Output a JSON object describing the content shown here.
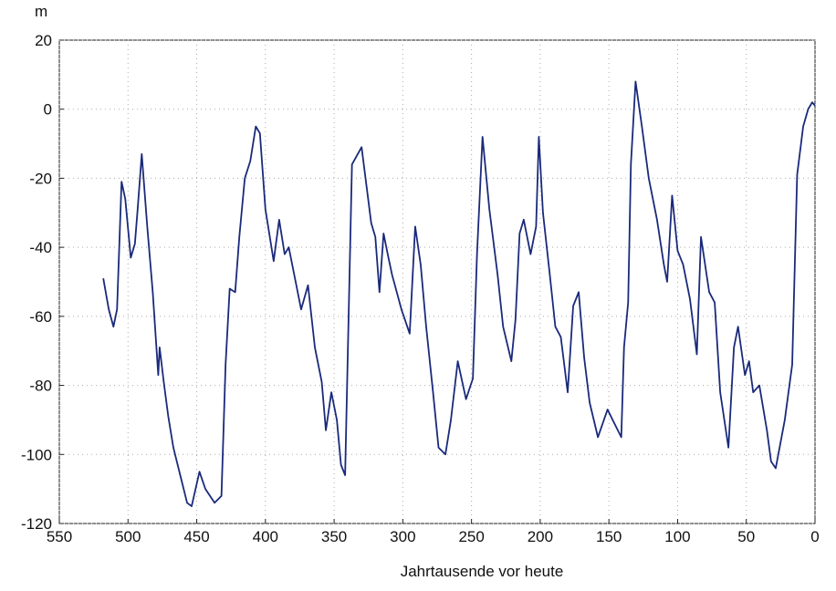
{
  "chart_data": {
    "type": "line",
    "y_unit": "m",
    "x_label": "Jahrtausende vor heute",
    "x": [
      518,
      514,
      510.6,
      508,
      504.7,
      502,
      498,
      495,
      493,
      490,
      486,
      482,
      478,
      477,
      474,
      470.7,
      467,
      462,
      457,
      453.7,
      448,
      443.7,
      437,
      432,
      429,
      426,
      422,
      419,
      415,
      411,
      407,
      404,
      400,
      394,
      390,
      386,
      383,
      378,
      374,
      369,
      364,
      359,
      356,
      352,
      348,
      345,
      342,
      337,
      330,
      323,
      320,
      317,
      314,
      311,
      307.8,
      301,
      295,
      291,
      287,
      283,
      278,
      274,
      269,
      265,
      260,
      254,
      249,
      246,
      242,
      237,
      231,
      227,
      221,
      218,
      215,
      212,
      207,
      203,
      201,
      198,
      193,
      189,
      185,
      180,
      176,
      172,
      168,
      164,
      158,
      151,
      146,
      141,
      139,
      136,
      134,
      130.6,
      126,
      121,
      115,
      110,
      107.6,
      104,
      100,
      96,
      91,
      86,
      83,
      77,
      73,
      69,
      63,
      59,
      56,
      51,
      48,
      45,
      40.5,
      35,
      32,
      28.6,
      22,
      16.6,
      13,
      8.6,
      5,
      2,
      0
    ],
    "values": [
      -49,
      -58,
      -63,
      -58,
      -21,
      -26,
      -43,
      -39,
      -29,
      -13,
      -34,
      -53,
      -77,
      -69,
      -79,
      -89,
      -98,
      -106,
      -114,
      -115,
      -105,
      -110,
      -114,
      -112,
      -74,
      -52,
      -53,
      -37,
      -20,
      -15,
      -5,
      -7,
      -29,
      -44,
      -32,
      -42,
      -40,
      -50,
      -58,
      -51,
      -69,
      -79,
      -93,
      -82,
      -90,
      -103,
      -106,
      -16,
      -11,
      -33,
      -37,
      -53,
      -36,
      -42,
      -48,
      -58,
      -65,
      -34,
      -45,
      -63,
      -82,
      -98,
      -100,
      -90,
      -73,
      -84,
      -78,
      -42,
      -8,
      -29,
      -48,
      -63,
      -73,
      -61,
      -36,
      -32,
      -42,
      -34,
      -8,
      -30,
      -48,
      -63,
      -66,
      -82,
      -57,
      -53,
      -72,
      -85,
      -95,
      -87,
      -91,
      -95,
      -69,
      -56,
      -16,
      8,
      -5,
      -20,
      -32,
      -45,
      -50,
      -25,
      -41,
      -45,
      -55,
      -71,
      -37,
      -53,
      -56,
      -82,
      -98,
      -69,
      -63,
      -77,
      -73,
      -82,
      -80,
      -93,
      -102,
      -104,
      -90,
      -74,
      -19,
      -5,
      0,
      2,
      1
    ],
    "color": "#1a2a7a",
    "xlim": [
      550,
      0
    ],
    "ylim": [
      -120,
      20
    ],
    "xticks": [
      550,
      500,
      450,
      400,
      350,
      300,
      250,
      200,
      150,
      100,
      50,
      0
    ],
    "yticks": [
      -120,
      -100,
      -80,
      -60,
      -40,
      -20,
      0,
      20
    ],
    "grid": true
  }
}
